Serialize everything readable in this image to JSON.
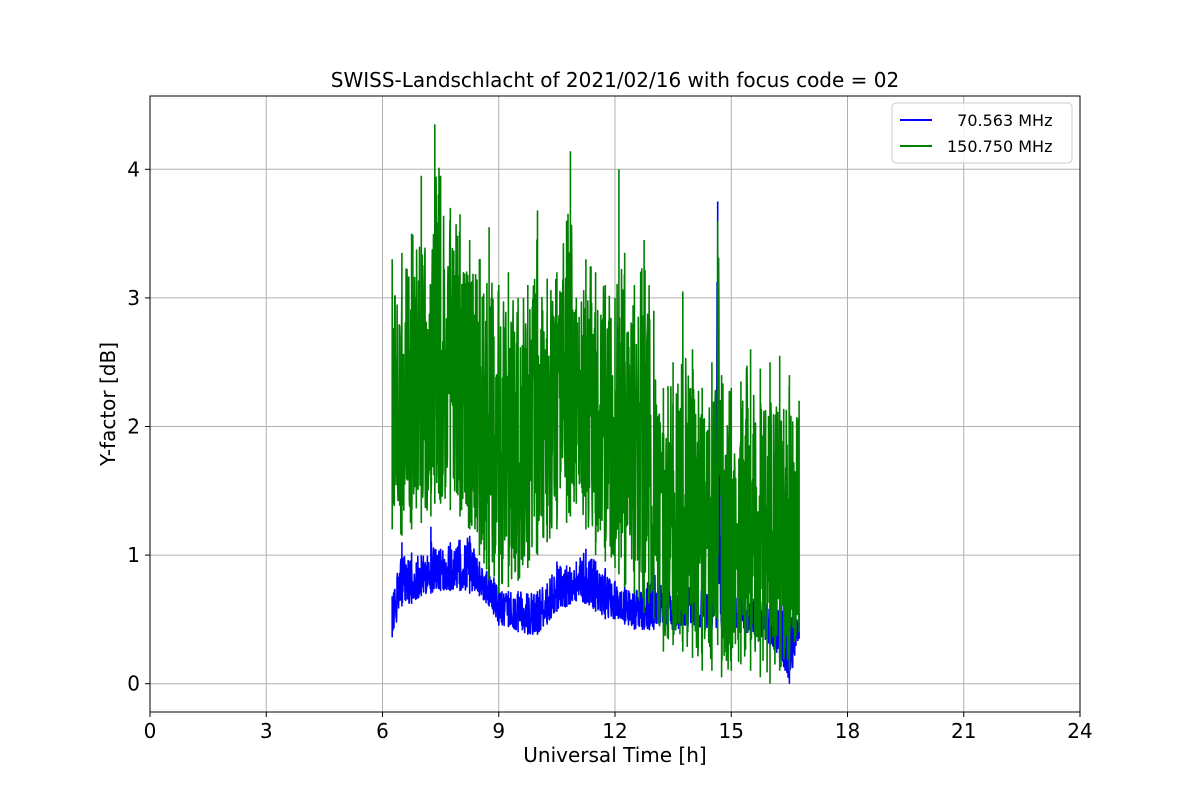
{
  "chart_data": {
    "type": "line",
    "title": "SWISS-Landschlacht of 2021/02/16 with focus code = 02",
    "xlabel": "Universal Time [h]",
    "ylabel": "Y-factor [dB]",
    "xlim": [
      0,
      24
    ],
    "ylim": [
      -0.22,
      4.57
    ],
    "xticks": [
      0,
      3,
      6,
      9,
      12,
      15,
      18,
      21,
      24
    ],
    "yticks": [
      0,
      1,
      2,
      3,
      4
    ],
    "grid": true,
    "legend_position": "top-right",
    "series": [
      {
        "name": "  70.563 MHz",
        "color": "#0000ff",
        "x": [
          6.25,
          6.5,
          6.75,
          7.0,
          7.25,
          7.5,
          7.75,
          8.0,
          8.25,
          8.5,
          8.75,
          9.0,
          9.25,
          9.5,
          9.75,
          10.0,
          10.25,
          10.5,
          10.75,
          11.0,
          11.25,
          11.5,
          11.75,
          12.0,
          12.25,
          12.5,
          12.75,
          13.0,
          13.25,
          13.5,
          13.75,
          14.0,
          14.25,
          14.5,
          14.65,
          14.75,
          15.0,
          15.25,
          15.5,
          15.75,
          16.0,
          16.25,
          16.5,
          16.75
        ],
        "y_low": [
          0.36,
          0.6,
          0.62,
          0.68,
          0.7,
          0.72,
          0.72,
          0.72,
          0.7,
          0.68,
          0.6,
          0.45,
          0.44,
          0.4,
          0.38,
          0.38,
          0.46,
          0.56,
          0.6,
          0.64,
          0.62,
          0.56,
          0.5,
          0.5,
          0.46,
          0.42,
          0.42,
          0.42,
          0.42,
          0.42,
          0.42,
          0.44,
          0.42,
          0.42,
          0.42,
          0.44,
          0.42,
          0.4,
          0.38,
          0.36,
          0.3,
          0.2,
          0.0,
          0.35
        ],
        "y_high": [
          0.68,
          1.1,
          1.02,
          1.0,
          1.22,
          1.05,
          1.1,
          1.12,
          1.15,
          0.95,
          0.92,
          0.75,
          0.72,
          0.72,
          0.7,
          0.72,
          0.78,
          0.95,
          0.92,
          0.95,
          1.05,
          0.95,
          0.9,
          0.8,
          0.78,
          0.75,
          0.72,
          0.9,
          0.8,
          0.7,
          0.72,
          0.8,
          0.75,
          0.72,
          3.75,
          0.7,
          0.72,
          0.7,
          0.7,
          0.65,
          0.62,
          0.6,
          0.68,
          0.55
        ]
      },
      {
        "name": "150.750 MHz",
        "color": "#008000",
        "x": [
          6.25,
          6.5,
          6.75,
          7.0,
          7.25,
          7.35,
          7.5,
          7.75,
          8.0,
          8.25,
          8.5,
          8.75,
          9.0,
          9.25,
          9.5,
          9.75,
          10.0,
          10.25,
          10.5,
          10.75,
          10.85,
          11.0,
          11.25,
          11.5,
          11.75,
          12.0,
          12.1,
          12.25,
          12.5,
          12.75,
          13.0,
          13.25,
          13.5,
          13.75,
          14.0,
          14.25,
          14.5,
          14.65,
          14.75,
          15.0,
          15.25,
          15.5,
          15.75,
          16.0,
          16.25,
          16.5,
          16.75
        ],
        "y_low": [
          1.2,
          1.15,
          1.2,
          1.25,
          1.3,
          1.4,
          1.4,
          1.35,
          1.3,
          1.2,
          1.0,
          0.8,
          0.7,
          0.75,
          0.8,
          0.9,
          1.0,
          1.1,
          1.2,
          1.25,
          1.3,
          1.4,
          1.2,
          1.0,
          0.95,
          0.9,
          0.85,
          0.75,
          0.7,
          0.55,
          0.5,
          0.25,
          0.3,
          0.25,
          0.2,
          0.1,
          0.1,
          0.3,
          0.05,
          0.1,
          0.15,
          0.1,
          0.05,
          0.0,
          0.1,
          0.1,
          0.4
        ],
        "y_high": [
          3.3,
          3.35,
          3.5,
          3.95,
          3.1,
          4.35,
          3.95,
          3.7,
          3.65,
          3.45,
          3.3,
          3.55,
          3.1,
          3.2,
          3.0,
          3.1,
          3.68,
          3.15,
          3.2,
          3.6,
          4.14,
          3.0,
          3.3,
          3.2,
          3.1,
          3.0,
          4.0,
          3.35,
          3.1,
          3.45,
          2.9,
          2.3,
          2.5,
          3.05,
          2.6,
          2.3,
          2.5,
          3.6,
          2.4,
          2.3,
          2.35,
          2.6,
          2.45,
          2.5,
          2.55,
          2.4,
          2.2
        ]
      }
    ]
  }
}
